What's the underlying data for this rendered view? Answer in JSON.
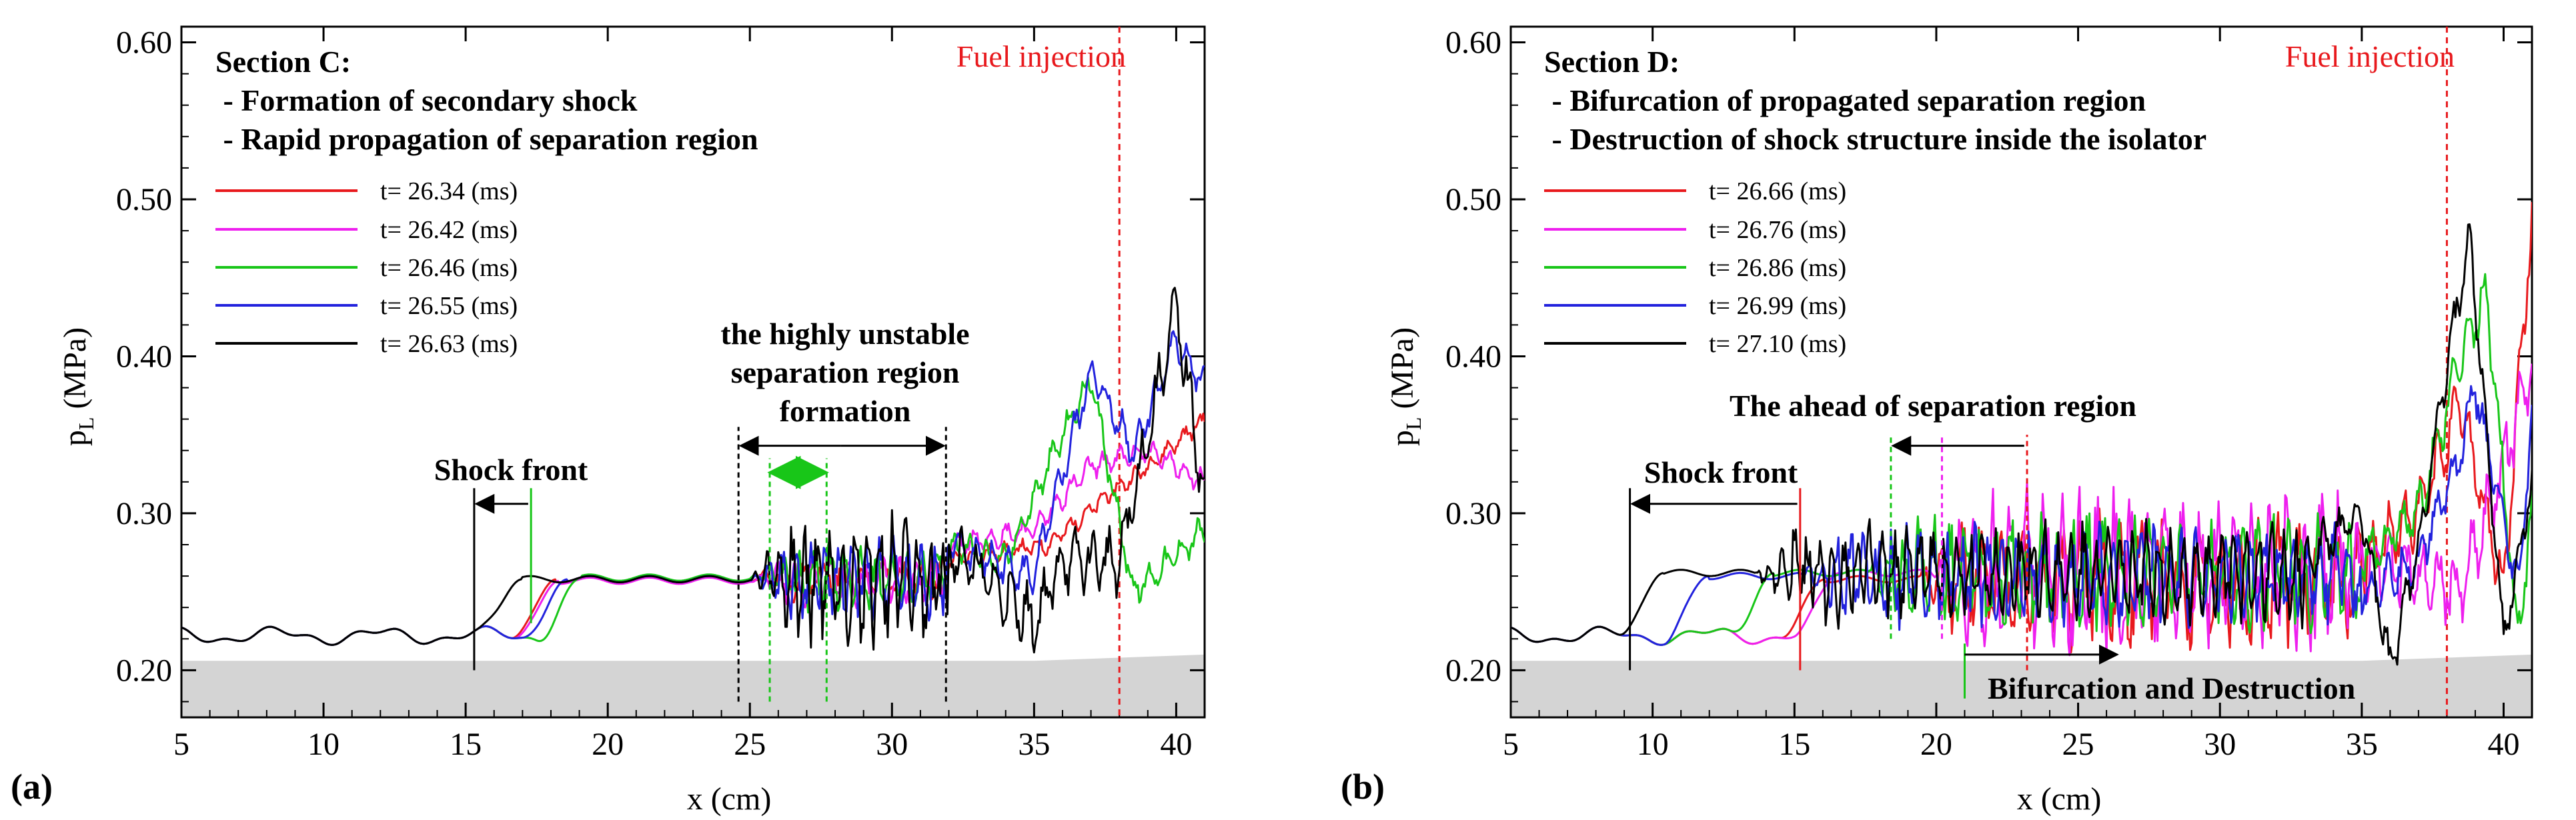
{
  "chart_data": [
    {
      "type": "line",
      "panel_label": "(a)",
      "xlabel": "x (cm)",
      "ylabel_base": "p",
      "ylabel_sub": "L",
      "ylabel_unit": " (MPa)",
      "xlim": [
        5,
        41
      ],
      "ylim": [
        0.17,
        0.61
      ],
      "xticks": [
        5,
        10,
        15,
        20,
        25,
        30,
        35,
        40
      ],
      "yticks": [
        "0.20",
        "0.30",
        "0.40",
        "0.50",
        "0.60"
      ],
      "title_lines": [
        "Section C:",
        " - Formation of secondary shock",
        " - Rapid propagation of separation region"
      ],
      "fuel_injection_label": "Fuel injection",
      "fuel_injection_x": 38,
      "legend": [
        "t= 26.34 (ms)",
        "t= 26.42 (ms)",
        "t= 26.46 (ms)",
        "t= 26.55 (ms)",
        "t= 26.63 (ms)"
      ],
      "annotations": {
        "shock_front": "Shock front",
        "region_lines": [
          "the highly unstable",
          "separation region",
          "formation"
        ]
      },
      "series": [
        {
          "name": "t= 26.34 (ms)",
          "color": "#e8191d",
          "front": 17.4,
          "plateau": 0.258,
          "seed": 11,
          "amp": 0.012,
          "tail": [
            [
              32,
              0.27
            ],
            [
              35.5,
              0.28
            ],
            [
              37.5,
              0.31
            ],
            [
              39,
              0.33
            ],
            [
              41,
              0.36
            ]
          ]
        },
        {
          "name": "t= 26.42 (ms)",
          "color": "#ee1fee",
          "front": 17.5,
          "plateau": 0.257,
          "seed": 23,
          "amp": 0.015,
          "tail": [
            [
              32,
              0.28
            ],
            [
              35,
              0.29
            ],
            [
              37,
              0.33
            ],
            [
              39,
              0.34
            ],
            [
              41,
              0.32
            ]
          ]
        },
        {
          "name": "t= 26.46 (ms)",
          "color": "#18c618",
          "front": 18.3,
          "plateau": 0.259,
          "seed": 37,
          "amp": 0.02,
          "tail": [
            [
              32,
              0.28
            ],
            [
              34,
              0.27
            ],
            [
              36,
              0.35
            ],
            [
              37,
              0.385
            ],
            [
              38.5,
              0.25
            ],
            [
              41,
              0.29
            ]
          ]
        },
        {
          "name": "t= 26.55 (ms)",
          "color": "#2222dd",
          "front": 17.8,
          "plateau": 0.258,
          "seed": 41,
          "amp": 0.025,
          "tail": [
            [
              32,
              0.28
            ],
            [
              35,
              0.26
            ],
            [
              37,
              0.39
            ],
            [
              38.5,
              0.34
            ],
            [
              40,
              0.41
            ],
            [
              41,
              0.38
            ]
          ]
        },
        {
          "name": "t= 26.63 (ms)",
          "color": "#000000",
          "front": 16.2,
          "plateau": 0.258,
          "seed": 59,
          "amp": 0.04,
          "tail": [
            [
              32,
              0.28
            ],
            [
              35,
              0.23
            ],
            [
              36,
              0.27
            ],
            [
              38,
              0.27
            ],
            [
              40,
              0.43
            ],
            [
              41,
              0.31
            ]
          ]
        }
      ]
    },
    {
      "type": "line",
      "panel_label": "(b)",
      "xlabel": "x (cm)",
      "ylabel_base": "p",
      "ylabel_sub": "L",
      "ylabel_unit": " (MPa)",
      "xlim": [
        5,
        41
      ],
      "ylim": [
        0.17,
        0.61
      ],
      "xticks": [
        5,
        10,
        15,
        20,
        25,
        30,
        35,
        40
      ],
      "yticks": [
        "0.20",
        "0.30",
        "0.40",
        "0.50",
        "0.60"
      ],
      "title_lines": [
        "Section D:",
        " - Bifurcation of propagated separation region",
        " - Destruction of shock structure inside the isolator"
      ],
      "fuel_injection_label": "Fuel injection",
      "fuel_injection_x": 38,
      "legend": [
        "t= 26.66 (ms)",
        "t= 26.76 (ms)",
        "t= 26.86 (ms)",
        "t= 26.99 (ms)",
        "t= 27.10 (ms)"
      ],
      "annotations": {
        "shock_front": "Shock front",
        "ahead_region": "The ahead of separation region",
        "bifurcation": "Bifurcation and Destruction"
      },
      "series": [
        {
          "name": "t= 26.66 (ms)",
          "color": "#e8191d",
          "front": 15.3,
          "plateau": 0.258,
          "seed": 71,
          "amp": 0.04,
          "tail": [
            [
              35,
              0.27
            ],
            [
              37,
              0.3
            ],
            [
              38.5,
              0.37
            ],
            [
              40,
              0.25
            ],
            [
              41,
              0.49
            ]
          ]
        },
        {
          "name": "t= 26.76 (ms)",
          "color": "#ee1fee",
          "front": 15.8,
          "plateau": 0.262,
          "seed": 83,
          "amp": 0.05,
          "tail": [
            [
              35,
              0.27
            ],
            [
              37,
              0.26
            ],
            [
              38.5,
              0.25
            ],
            [
              40,
              0.33
            ],
            [
              41,
              0.4
            ]
          ]
        },
        {
          "name": "t= 26.86 (ms)",
          "color": "#18c618",
          "front": 13.5,
          "plateau": 0.262,
          "seed": 97,
          "amp": 0.035,
          "tail": [
            [
              35,
              0.27
            ],
            [
              37,
              0.3
            ],
            [
              38.5,
              0.4
            ],
            [
              39.4,
              0.44
            ],
            [
              40.5,
              0.22
            ],
            [
              41,
              0.3
            ]
          ]
        },
        {
          "name": "t= 26.99 (ms)",
          "color": "#2222dd",
          "front": 11.2,
          "plateau": 0.26,
          "seed": 103,
          "amp": 0.03,
          "tail": [
            [
              35,
              0.25
            ],
            [
              37,
              0.27
            ],
            [
              38.5,
              0.34
            ],
            [
              39,
              0.38
            ],
            [
              40.5,
              0.25
            ],
            [
              41,
              0.36
            ]
          ]
        },
        {
          "name": "t= 27.10 (ms)",
          "color": "#000000",
          "front": 9.6,
          "plateau": 0.262,
          "seed": 109,
          "amp": 0.03,
          "tail": [
            [
              33,
              0.27
            ],
            [
              35,
              0.3
            ],
            [
              36,
              0.2
            ],
            [
              37,
              0.28
            ],
            [
              38.8,
              0.48
            ],
            [
              40,
              0.22
            ],
            [
              41,
              0.32
            ]
          ]
        }
      ]
    }
  ]
}
